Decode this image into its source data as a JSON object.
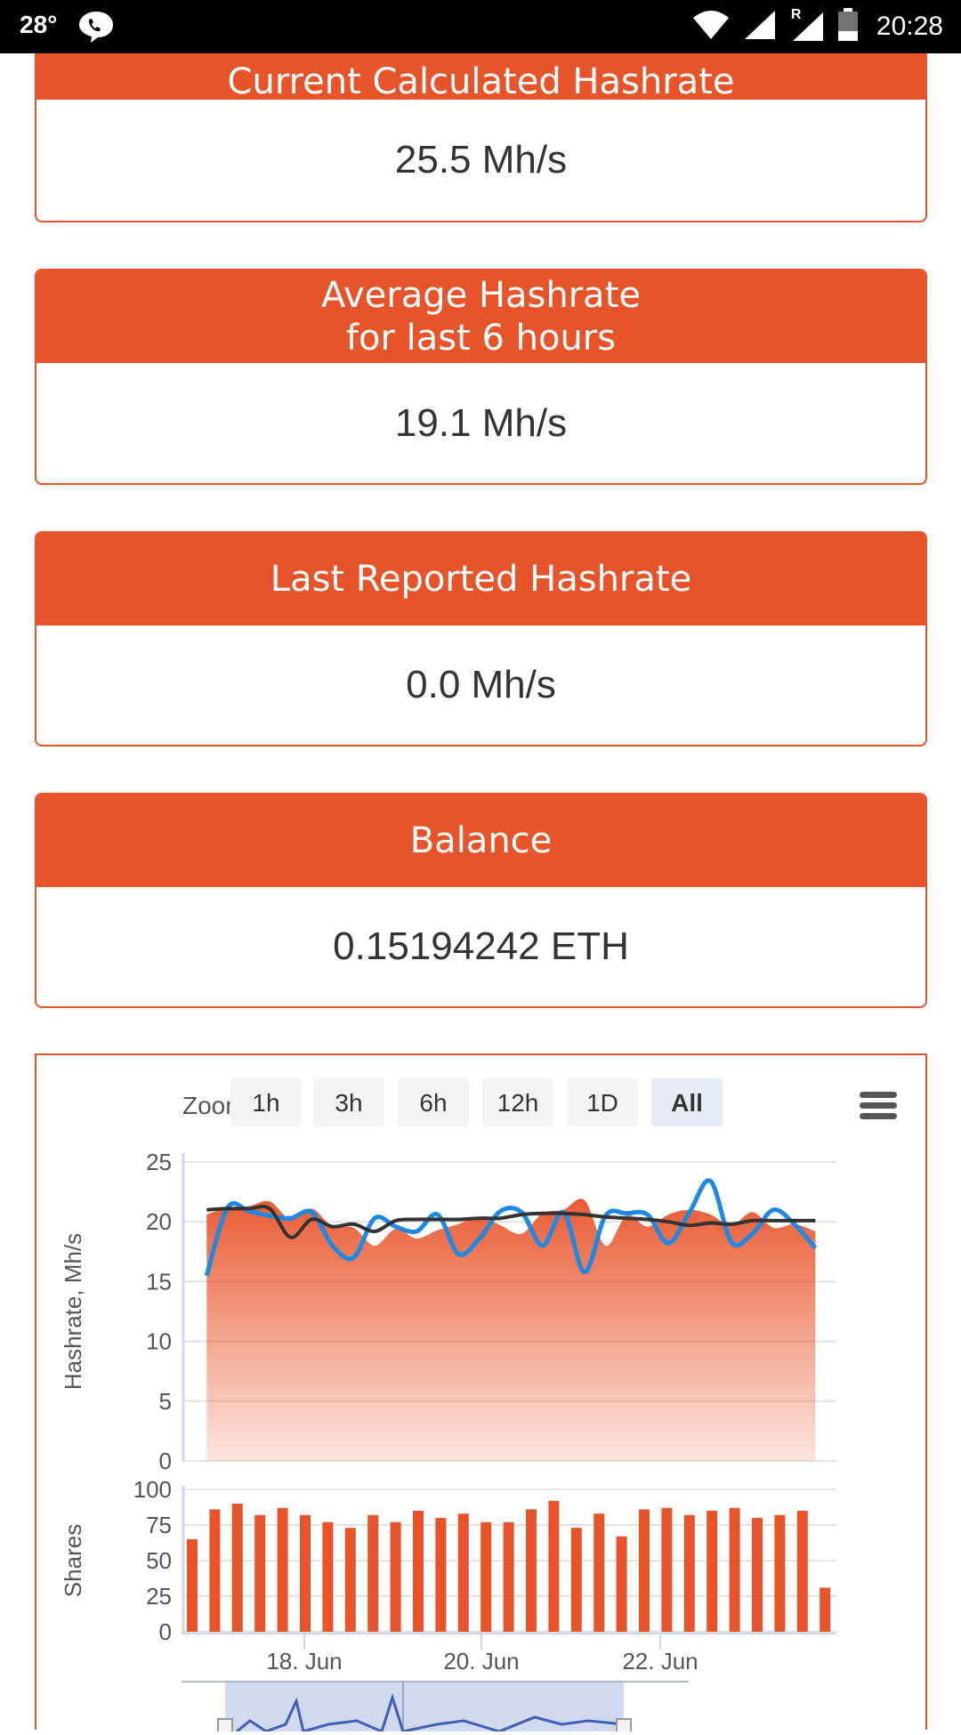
{
  "status_bar": {
    "temperature": "28°",
    "time": "20:28",
    "roaming": "R"
  },
  "cards": [
    {
      "title_lines": [
        "Current Calculated Hashrate"
      ],
      "value": "25.5 Mh/s"
    },
    {
      "title_lines": [
        "Average Hashrate",
        "for last 6 hours"
      ],
      "value": "19.1 Mh/s"
    },
    {
      "title_lines": [
        "Last Reported Hashrate"
      ],
      "value": "0.0 Mh/s"
    },
    {
      "title_lines": [
        "Balance"
      ],
      "value": "0.15194242 ETH"
    }
  ],
  "zoom": {
    "label": "Zoom",
    "buttons": [
      "1h",
      "3h",
      "6h",
      "12h",
      "1D",
      "All"
    ],
    "selected": "All"
  },
  "colors": {
    "accent": "#e8542a",
    "series_blue": "#1e88e5",
    "series_dark": "#333333"
  },
  "chart_data": [
    {
      "type": "area",
      "ylabel": "Hashrate, Mh/s",
      "ylim": [
        0,
        25
      ],
      "yticks": [
        0,
        5,
        10,
        15,
        20,
        25
      ],
      "grid": true,
      "x": [
        "16.5 Jun",
        "16.75 Jun",
        "17 Jun",
        "17.25 Jun",
        "17.5 Jun",
        "17.75 Jun",
        "18 Jun",
        "18.25 Jun",
        "18.5 Jun",
        "18.75 Jun",
        "19 Jun",
        "19.25 Jun",
        "19.5 Jun",
        "19.75 Jun",
        "20 Jun",
        "20.25 Jun",
        "20.5 Jun",
        "20.75 Jun",
        "21 Jun",
        "21.25 Jun",
        "21.5 Jun",
        "21.75 Jun",
        "22 Jun",
        "22.25 Jun",
        "22.5 Jun",
        "22.75 Jun",
        "23 Jun",
        "23.25 Jun",
        "23.5 Jun",
        "23.75 Jun"
      ],
      "series": [
        {
          "type": "area",
          "color": "#e8542a",
          "values": [
            20.6,
            21.2,
            21.3,
            21.7,
            20.2,
            21.1,
            19.6,
            19.5,
            18.0,
            19.4,
            18.6,
            19.3,
            19.8,
            20.4,
            19.7,
            19.0,
            20.7,
            21.0,
            21.8,
            18.0,
            20.5,
            19.6,
            20.6,
            21.0,
            20.6,
            19.7,
            20.8,
            19.5,
            19.8,
            19.2
          ]
        },
        {
          "type": "line",
          "color": "#1e88e5",
          "values": [
            15.5,
            21.2,
            20.9,
            20.5,
            20.3,
            20.8,
            18.0,
            17.0,
            20.3,
            19.6,
            19.2,
            20.6,
            17.3,
            18.6,
            20.9,
            20.8,
            18.0,
            20.8,
            15.8,
            20.5,
            20.7,
            20.6,
            18.2,
            20.8,
            23.4,
            18.3,
            19.0,
            21.0,
            19.8,
            17.8
          ]
        },
        {
          "type": "line",
          "color": "#333333",
          "values": [
            21.0,
            21.1,
            21.1,
            21.1,
            18.7,
            20.2,
            19.6,
            19.8,
            19.2,
            20.1,
            20.2,
            20.2,
            20.2,
            20.3,
            20.3,
            20.6,
            20.7,
            20.7,
            20.6,
            20.4,
            20.3,
            20.2,
            20.0,
            19.7,
            19.9,
            19.8,
            20.1,
            20.1,
            20.1,
            20.1
          ]
        }
      ]
    },
    {
      "type": "bar",
      "ylabel": "Shares",
      "ylim": [
        0,
        100
      ],
      "yticks": [
        0,
        25,
        50,
        75,
        100
      ],
      "grid": true,
      "x_tick_labels": [
        "18. Jun",
        "20. Jun",
        "22. Jun"
      ],
      "values": [
        65,
        86,
        90,
        82,
        87,
        82,
        77,
        73,
        82,
        77,
        85,
        80,
        83,
        77,
        77,
        86,
        92,
        73,
        83,
        67,
        86,
        87,
        82,
        85,
        87,
        80,
        82,
        85,
        31
      ]
    }
  ]
}
